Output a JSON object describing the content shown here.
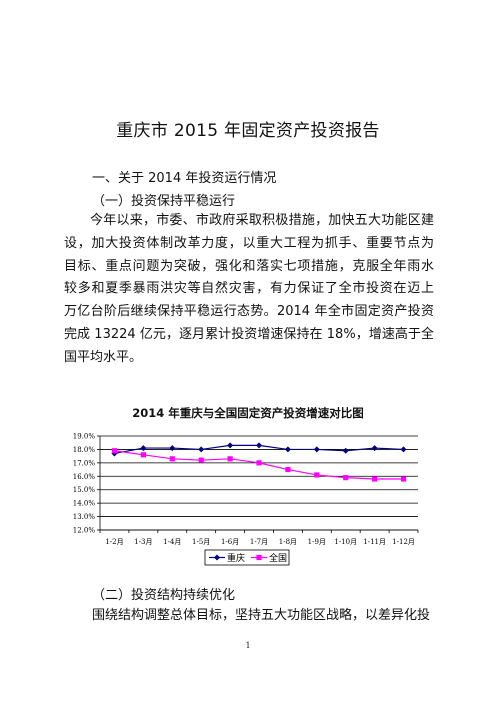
{
  "document": {
    "title": "重庆市 2015 年固定资产投资报告",
    "section1_heading": "一、关于 2014 年投资运行情况",
    "section1_sub1": "（一）投资保持平稳运行",
    "paragraph1_lines": [
      "今年以来，市委、市政府采取积极措施，加快五大功能区建",
      "设，加大投资体制改革力度，以重大工程为抓手、重要节点为",
      "目标、重点问题为突破，强化和落实七项措施，克服全年雨水",
      "较多和夏季暴雨洪灾等自然灾害，有力保证了全市投资在迈上",
      "万亿台阶后继续保持平稳运行态势。2014 年全市固定资产投资",
      "完成 13224 亿元，逐月累计投资增速保持在 18%，增速高于全",
      "国平均水平。"
    ],
    "section1_sub2": "（二）投资结构持续优化",
    "paragraph2_line": "围绕结构调整总体目标，坚持五大功能区战略，以差异化投",
    "page_number": "1"
  },
  "chart_data": {
    "type": "line",
    "title": "2014 年重庆与全国固定资产投资增速对比图",
    "categories": [
      "1-2月",
      "1-3月",
      "1-4月",
      "1-5月",
      "1-6月",
      "1-7月",
      "1-8月",
      "1-9月",
      "1-10月",
      "1-11月",
      "1-12月"
    ],
    "series": [
      {
        "name": "重庆",
        "color": "#000080",
        "marker": "diamond",
        "values": [
          17.7,
          18.1,
          18.1,
          18.0,
          18.3,
          18.3,
          18.0,
          18.0,
          17.9,
          18.1,
          18.0
        ]
      },
      {
        "name": "全国",
        "color": "#ff00ff",
        "marker": "square",
        "values": [
          17.9,
          17.6,
          17.3,
          17.2,
          17.3,
          17.0,
          16.5,
          16.1,
          15.9,
          15.8,
          15.8
        ]
      }
    ],
    "ylim": [
      12.0,
      19.0
    ],
    "yticks": [
      "12.0%",
      "13.0%",
      "14.0%",
      "15.0%",
      "16.0%",
      "17.0%",
      "18.0%",
      "19.0%"
    ],
    "grid": true,
    "legend": "bottom"
  }
}
